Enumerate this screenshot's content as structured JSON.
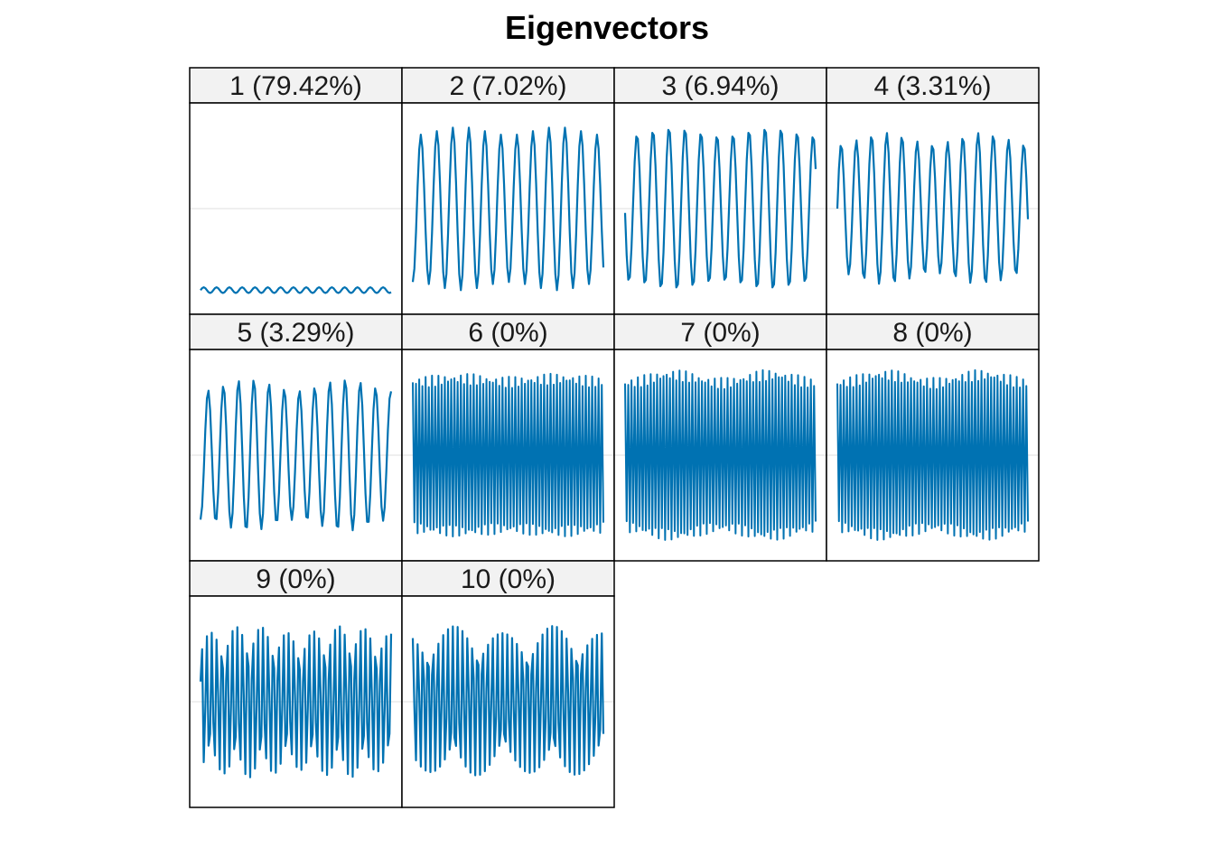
{
  "chart_data": {
    "type": "line",
    "title": "Eigenvectors",
    "xlabel": "",
    "ylabel": "",
    "grid": true,
    "line_color": "#0072B2",
    "panel_border_color": "#000000",
    "strip_fill": "#F2F2F2",
    "gridline_color": "#E5E5E5",
    "ylim": [
      -1,
      1
    ],
    "n_points": 120,
    "panels": [
      {
        "label": "1 (79.42%)",
        "series": {
          "kind": "constant",
          "level": -0.86,
          "amp": 0.03,
          "period": 8
        }
      },
      {
        "label": "2 (7.02%)",
        "series": {
          "kind": "sine",
          "amp": 0.86,
          "period": 10,
          "phase": 4.7,
          "mod_depth": 0.1
        }
      },
      {
        "label": "3 (6.94%)",
        "series": {
          "kind": "sine",
          "amp": 0.86,
          "period": 10,
          "phase": 3.2,
          "mod_depth": 0.1
        }
      },
      {
        "label": "4 (3.31%)",
        "series": {
          "kind": "sine",
          "amp": 0.8,
          "period": 9.5,
          "phase": 0.0,
          "mod_depth": 0.15
        }
      },
      {
        "label": "5 (3.29%)",
        "series": {
          "kind": "sine",
          "amp": 0.8,
          "period": 9.5,
          "phase": 4.7,
          "mod_depth": 0.15
        }
      },
      {
        "label": "6 (0%)",
        "series": {
          "kind": "noise",
          "amp": 0.8,
          "period": 2,
          "mod_depth": 0.04
        }
      },
      {
        "label": "7 (0%)",
        "series": {
          "kind": "noise",
          "amp": 0.84,
          "period": 2,
          "mod_depth": 0.1
        }
      },
      {
        "label": "8 (0%)",
        "series": {
          "kind": "noise",
          "amp": 0.84,
          "period": 2,
          "mod_depth": 0.1
        }
      },
      {
        "label": "9 (0%)",
        "series": {
          "kind": "sine",
          "amp": 0.8,
          "period": 3.2,
          "phase": 0.3,
          "mod_depth": 0.1
        }
      },
      {
        "label": "10 (0%)",
        "series": {
          "kind": "sine",
          "amp": 0.8,
          "period": 3.1,
          "phase": 1.2,
          "mod_depth": 0.1
        }
      }
    ]
  }
}
